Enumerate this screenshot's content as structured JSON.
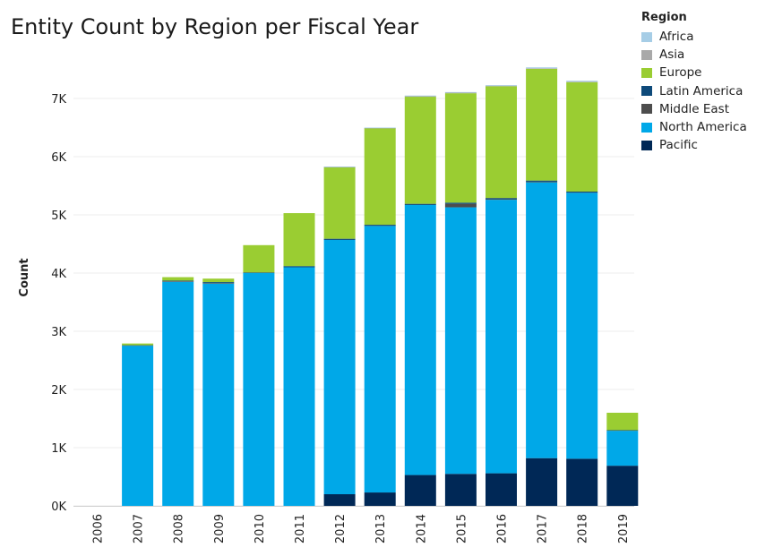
{
  "chart_data": {
    "type": "bar",
    "stacked": true,
    "title": "Entity Count by Region per Fiscal Year",
    "xlabel": "",
    "ylabel": "Count",
    "ylim": [
      0,
      8000
    ],
    "yticks": [
      0,
      1000,
      2000,
      3000,
      4000,
      5000,
      6000,
      7000
    ],
    "ytick_labels": [
      "0K",
      "1K",
      "2K",
      "3K",
      "4K",
      "5K",
      "6K",
      "7K"
    ],
    "grid": true,
    "legend_title": "Region",
    "legend_position": "top-right",
    "categories": [
      "2006",
      "2007",
      "2008",
      "2009",
      "2010",
      "2011",
      "2012",
      "2013",
      "2014",
      "2015",
      "2016",
      "2017",
      "2018",
      "2019"
    ],
    "series": [
      {
        "name": "Africa",
        "color": "#a6cde6",
        "values": [
          0,
          0,
          0,
          0,
          0,
          0,
          5,
          5,
          10,
          10,
          10,
          15,
          15,
          0
        ]
      },
      {
        "name": "Asia",
        "color": "#a9a9a9",
        "values": [
          0,
          0,
          0,
          0,
          0,
          0,
          5,
          5,
          10,
          10,
          10,
          10,
          10,
          0
        ]
      },
      {
        "name": "Europe",
        "color": "#9acd32",
        "values": [
          0,
          30,
          60,
          60,
          470,
          910,
          1230,
          1660,
          1840,
          1880,
          1920,
          1920,
          1880,
          300
        ]
      },
      {
        "name": "Latin America",
        "color": "#0e4a7a",
        "values": [
          0,
          10,
          10,
          15,
          10,
          20,
          20,
          20,
          20,
          20,
          20,
          20,
          20,
          10
        ]
      },
      {
        "name": "Middle East",
        "color": "#4d4d4d",
        "values": [
          0,
          0,
          10,
          10,
          0,
          0,
          0,
          0,
          0,
          60,
          10,
          10,
          0,
          0
        ]
      },
      {
        "name": "North America",
        "color": "#00a8e8",
        "values": [
          0,
          2750,
          3850,
          3820,
          4000,
          4100,
          4370,
          4580,
          4640,
          4580,
          4700,
          4740,
          4570,
          600
        ]
      },
      {
        "name": "Pacific",
        "color": "#002856",
        "values": [
          0,
          0,
          0,
          0,
          0,
          0,
          200,
          230,
          530,
          550,
          560,
          820,
          810,
          690
        ]
      }
    ]
  }
}
